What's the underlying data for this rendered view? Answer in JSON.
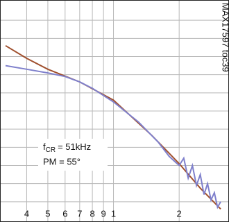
{
  "chart_data": {
    "type": "line",
    "xscale": "log",
    "xlim": [
      3.2,
      31
    ],
    "ylim": [
      0,
      12
    ],
    "xticks": [
      4,
      5,
      6,
      7,
      8,
      9,
      {
        "value": 10,
        "label": "1"
      },
      {
        "value": 20,
        "label": "2"
      }
    ],
    "ygrid": [
      1,
      2,
      3,
      4,
      5,
      6,
      7,
      8,
      9,
      10,
      11
    ],
    "grid": true,
    "series": [
      {
        "color": "#a0502e",
        "x": [
          3.2,
          4,
          5,
          7,
          10,
          15,
          20,
          25,
          31
        ],
        "values": [
          9.6,
          8.9,
          8.3,
          7.6,
          6.6,
          4.65,
          3.1,
          1.75,
          0.6
        ]
      },
      {
        "color": "#7f80cc",
        "x": [
          3.2,
          4,
          5,
          6,
          7,
          8,
          10,
          13,
          16,
          18,
          20,
          21,
          22,
          23,
          24,
          25,
          26,
          27,
          28,
          29,
          30,
          31
        ],
        "values": [
          8.5,
          8.3,
          8.1,
          7.9,
          7.6,
          7.25,
          6.5,
          5.4,
          4.3,
          3.5,
          3.0,
          3.4,
          2.3,
          3.0,
          1.9,
          2.5,
          1.4,
          2.0,
          1.1,
          1.5,
          0.7,
          1.0
        ]
      }
    ],
    "annotation_1": [
      "f",
      "CR",
      "= 51kHz"
    ],
    "annotation_2": "PM = 55°",
    "note": "MAX17597 toc39"
  }
}
